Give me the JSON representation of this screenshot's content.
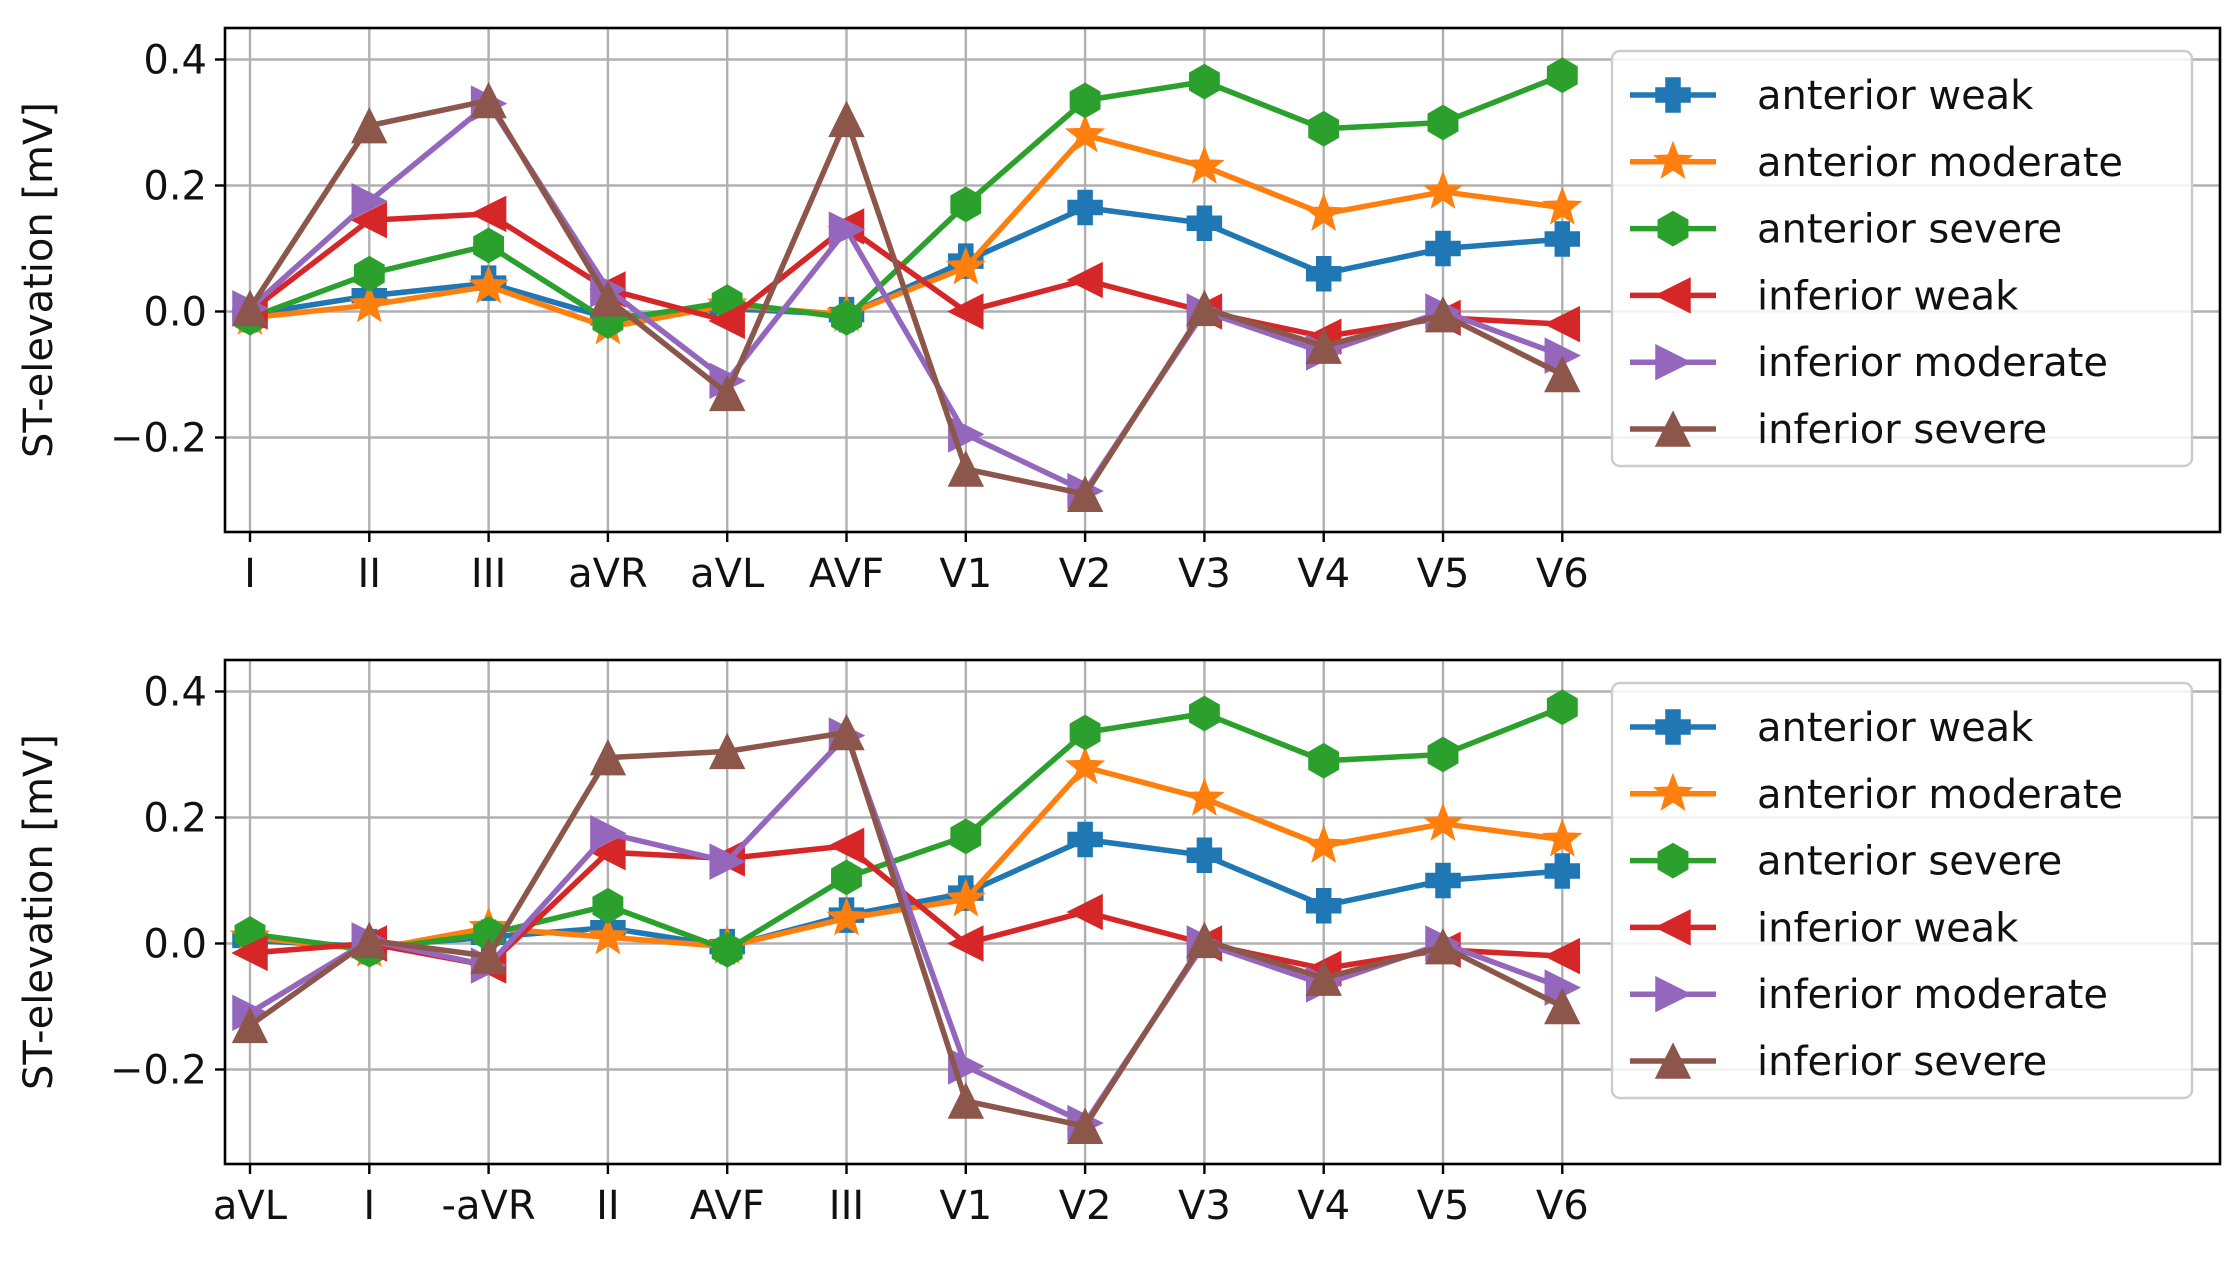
{
  "colors": {
    "anterior_weak": "#1f77b4",
    "anterior_moderate": "#ff7f0e",
    "anterior_severe": "#2ca02c",
    "inferior_weak": "#d62728",
    "inferior_moderate": "#9467bd",
    "inferior_severe": "#8c564b"
  },
  "chart_data": [
    {
      "type": "line",
      "title": "",
      "xlabel": "",
      "ylabel": "ST-elevation [mV]",
      "categories": [
        "I",
        "II",
        "III",
        "aVR",
        "aVL",
        "AVF",
        "V1",
        "V2",
        "V3",
        "V4",
        "V5",
        "V6"
      ],
      "ylim": [
        -0.35,
        0.45
      ],
      "yticks": [
        -0.2,
        0.0,
        0.2,
        0.4
      ],
      "ytick_labels": [
        "−0.2",
        "0.0",
        "0.2",
        "0.4"
      ],
      "grid": true,
      "legend_position": "right",
      "series": [
        {
          "name": "anterior weak",
          "marker": "plus",
          "color_key": "anterior_weak",
          "values": [
            -0.005,
            0.025,
            0.045,
            -0.01,
            0.005,
            -0.005,
            0.08,
            0.165,
            0.14,
            0.06,
            0.1,
            0.115
          ]
        },
        {
          "name": "anterior moderate",
          "marker": "star",
          "color_key": "anterior_moderate",
          "values": [
            -0.01,
            0.01,
            0.04,
            -0.025,
            0.01,
            -0.005,
            0.07,
            0.28,
            0.23,
            0.155,
            0.19,
            0.165
          ]
        },
        {
          "name": "anterior severe",
          "marker": "hexagon",
          "color_key": "anterior_severe",
          "values": [
            -0.01,
            0.06,
            0.105,
            -0.015,
            0.015,
            -0.01,
            0.17,
            0.335,
            0.365,
            0.29,
            0.3,
            0.375
          ]
        },
        {
          "name": "inferior weak",
          "marker": "triangle-left",
          "color_key": "inferior_weak",
          "values": [
            0.0,
            0.145,
            0.155,
            0.035,
            -0.015,
            0.135,
            0.0,
            0.05,
            0.0,
            -0.04,
            -0.01,
            -0.02
          ]
        },
        {
          "name": "inferior moderate",
          "marker": "triangle-right",
          "color_key": "inferior_moderate",
          "values": [
            0.005,
            0.175,
            0.33,
            0.035,
            -0.11,
            0.13,
            -0.195,
            -0.285,
            0.0,
            -0.065,
            0.0,
            -0.07
          ]
        },
        {
          "name": "inferior severe",
          "marker": "triangle-up",
          "color_key": "inferior_severe",
          "values": [
            0.005,
            0.295,
            0.335,
            0.02,
            -0.13,
            0.305,
            -0.25,
            -0.29,
            0.005,
            -0.055,
            -0.005,
            -0.1
          ]
        }
      ]
    },
    {
      "type": "line",
      "title": "",
      "xlabel": "",
      "ylabel": "ST-elevation [mV]",
      "categories": [
        "aVL",
        "I",
        "-aVR",
        "II",
        "AVF",
        "III",
        "V1",
        "V2",
        "V3",
        "V4",
        "V5",
        "V6"
      ],
      "ylim": [
        -0.35,
        0.45
      ],
      "yticks": [
        -0.2,
        0.0,
        0.2,
        0.4
      ],
      "ytick_labels": [
        "−0.2",
        "0.0",
        "0.2",
        "0.4"
      ],
      "grid": true,
      "legend_position": "right",
      "series": [
        {
          "name": "anterior weak",
          "marker": "plus",
          "color_key": "anterior_weak",
          "values": [
            0.005,
            -0.005,
            0.01,
            0.025,
            -0.005,
            0.045,
            0.08,
            0.165,
            0.14,
            0.06,
            0.1,
            0.115
          ]
        },
        {
          "name": "anterior moderate",
          "marker": "star",
          "color_key": "anterior_moderate",
          "values": [
            0.01,
            -0.01,
            0.025,
            0.01,
            -0.005,
            0.04,
            0.07,
            0.28,
            0.23,
            0.155,
            0.19,
            0.165
          ]
        },
        {
          "name": "anterior severe",
          "marker": "hexagon",
          "color_key": "anterior_severe",
          "values": [
            0.015,
            -0.01,
            0.015,
            0.06,
            -0.01,
            0.105,
            0.17,
            0.335,
            0.365,
            0.29,
            0.3,
            0.375
          ]
        },
        {
          "name": "inferior weak",
          "marker": "triangle-left",
          "color_key": "inferior_weak",
          "values": [
            -0.015,
            0.0,
            -0.035,
            0.145,
            0.135,
            0.155,
            0.0,
            0.05,
            0.0,
            -0.04,
            -0.01,
            -0.02
          ]
        },
        {
          "name": "inferior moderate",
          "marker": "triangle-right",
          "color_key": "inferior_moderate",
          "values": [
            -0.11,
            0.005,
            -0.035,
            0.175,
            0.13,
            0.33,
            -0.195,
            -0.285,
            0.0,
            -0.065,
            0.0,
            -0.07
          ]
        },
        {
          "name": "inferior severe",
          "marker": "triangle-up",
          "color_key": "inferior_severe",
          "values": [
            -0.13,
            0.005,
            -0.02,
            0.295,
            0.305,
            0.335,
            -0.25,
            -0.29,
            0.005,
            -0.055,
            -0.005,
            -0.1
          ]
        }
      ]
    }
  ]
}
